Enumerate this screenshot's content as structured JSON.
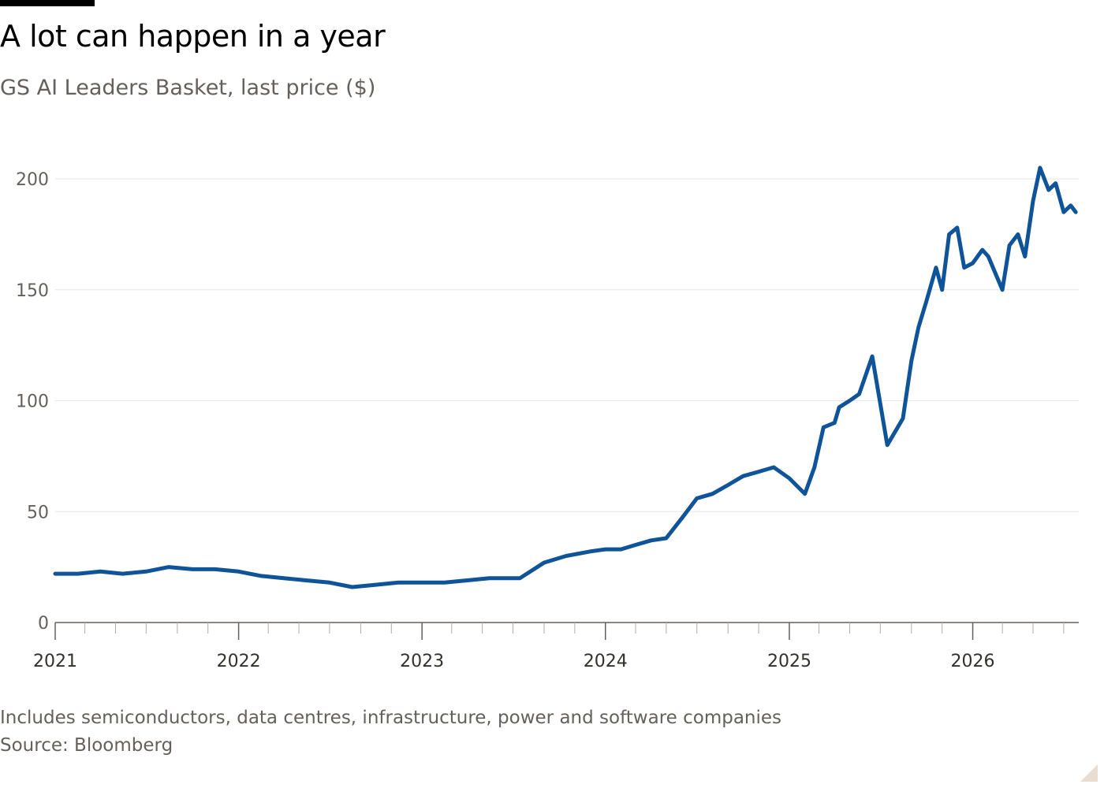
{
  "header": {
    "title": "A lot can happen in a year",
    "subtitle": "GS AI Leaders Basket, last price ($)"
  },
  "footer": {
    "note": "Includes semiconductors, data centres, infrastructure, power and software companies",
    "source": "Source: Bloomberg"
  },
  "colors": {
    "line": "#0f5499",
    "grid": "#e6e6e6",
    "axis": "#66605c",
    "text_muted": "#66605c"
  },
  "chart_data": {
    "type": "line",
    "title": "A lot can happen in a year",
    "subtitle": "GS AI Leaders Basket, last price ($)",
    "xlabel": "",
    "ylabel": "",
    "ylim": [
      0,
      200
    ],
    "xlim": [
      "2021-01-01",
      "2026-07-31"
    ],
    "y_ticks": [
      0,
      50,
      100,
      150,
      200
    ],
    "x_tick_labels": [
      "2021",
      "2022",
      "2023",
      "2024",
      "2025",
      "2026"
    ],
    "x_tick_dates": [
      "2021-01-01",
      "2022-01-01",
      "2023-01-01",
      "2024-01-01",
      "2025-01-01",
      "2026-01-01"
    ],
    "grid": true,
    "series": [
      {
        "x": [
          "2021-01-01",
          "2021-02-15",
          "2021-04-01",
          "2021-05-15",
          "2021-07-01",
          "2021-08-15",
          "2021-10-01",
          "2021-11-15",
          "2022-01-01",
          "2022-02-15",
          "2022-04-01",
          "2022-05-15",
          "2022-07-01",
          "2022-08-15",
          "2022-10-01",
          "2022-11-15",
          "2023-01-01",
          "2023-02-15",
          "2023-04-01",
          "2023-05-15",
          "2023-06-15",
          "2023-07-15",
          "2023-09-01",
          "2023-10-15",
          "2023-12-01",
          "2024-01-01",
          "2024-02-01",
          "2024-03-01",
          "2024-04-01",
          "2024-05-01",
          "2024-06-01",
          "2024-07-01",
          "2024-08-01",
          "2024-09-01",
          "2024-10-01",
          "2024-11-01",
          "2024-12-01",
          "2025-01-01",
          "2025-02-01",
          "2025-02-20",
          "2025-03-10",
          "2025-04-01",
          "2025-04-10",
          "2025-05-01",
          "2025-05-20",
          "2025-06-15",
          "2025-07-15",
          "2025-08-15",
          "2025-09-01",
          "2025-09-15",
          "2025-10-01",
          "2025-10-20",
          "2025-11-01",
          "2025-11-15",
          "2025-12-01",
          "2025-12-15",
          "2026-01-01",
          "2026-01-20",
          "2026-02-01",
          "2026-03-01",
          "2026-03-15",
          "2026-04-01",
          "2026-04-15",
          "2026-05-01",
          "2026-05-15",
          "2026-06-01",
          "2026-06-15",
          "2026-07-01",
          "2026-07-15",
          "2026-07-25"
        ],
        "values": [
          22,
          22,
          23,
          22,
          23,
          25,
          24,
          24,
          23,
          21,
          20,
          19,
          18,
          16,
          17,
          18,
          18,
          18,
          19,
          20,
          20,
          20,
          27,
          30,
          32,
          33,
          33,
          35,
          37,
          38,
          47,
          56,
          58,
          62,
          66,
          68,
          70,
          65,
          58,
          70,
          88,
          90,
          97,
          100,
          103,
          120,
          80,
          92,
          118,
          133,
          145,
          160,
          150,
          175,
          178,
          160,
          162,
          168,
          165,
          150,
          170,
          175,
          165,
          190,
          205,
          195,
          198,
          185,
          188,
          185
        ]
      }
    ]
  }
}
